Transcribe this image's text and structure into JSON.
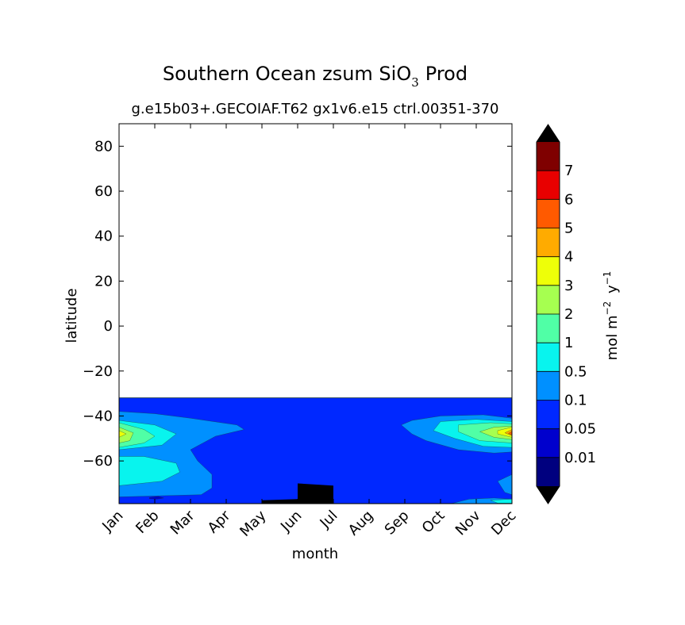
{
  "chart_data": {
    "type": "heatmap",
    "title": "Southern Ocean zsum SiO",
    "title_sub": "3",
    "title_suffix": "Prod",
    "subtitle": "g.e15b03+.GECOIAF.T62 gx1v6.e15 ctrl.00351-370",
    "xlabel": "month",
    "ylabel": "latitude",
    "x": [
      "Jan",
      "Feb",
      "Mar",
      "Apr",
      "May",
      "Jun",
      "Jul",
      "Aug",
      "Sep",
      "Oct",
      "Nov",
      "Dec"
    ],
    "xlim": [
      0,
      11
    ],
    "ylim": [
      -79,
      90
    ],
    "yticks": [
      -60,
      -40,
      -20,
      0,
      20,
      40,
      60,
      80
    ],
    "ytick_labels": [
      "−60",
      "−40",
      "−20",
      "0",
      "20",
      "40",
      "60",
      "80"
    ],
    "data_lat_top": -32,
    "grid": false,
    "colorbar": {
      "label_prefix": "mol m",
      "label_sup1": "−2",
      "label_mid": " y",
      "label_sup2": "−1",
      "levels": [
        "0.01",
        "0.05",
        "0.1",
        "0.5",
        "1",
        "2",
        "3",
        "4",
        "5",
        "6",
        "7"
      ],
      "colors": [
        "#00007f",
        "#0000cd",
        "#0028ff",
        "#0090ff",
        "#08f4ee",
        "#50ffa6",
        "#a6ff50",
        "#eeff08",
        "#ffab00",
        "#ff5a00",
        "#e80000",
        "#7f0000"
      ],
      "under_color": "#000000",
      "over_color": "#000000"
    },
    "contours": [
      {
        "level": 0,
        "points": [
          [
            0,
            -73
          ],
          [
            1,
            -70
          ],
          [
            2,
            -70
          ],
          [
            3,
            -72
          ],
          [
            4,
            -71
          ],
          [
            5,
            -66
          ],
          [
            6,
            -63
          ],
          [
            7,
            -65
          ],
          [
            8,
            -68
          ],
          [
            9,
            -72
          ],
          [
            10,
            -73
          ],
          [
            11,
            -72
          ],
          [
            11,
            -79
          ],
          [
            0,
            -79
          ]
        ]
      },
      {
        "level": 1,
        "points": [
          [
            0,
            -77
          ],
          [
            2.0,
            -77
          ],
          [
            2.4,
            -79
          ],
          [
            0,
            -79
          ]
        ]
      },
      {
        "level": 1,
        "points": [
          [
            2.3,
            -79
          ],
          [
            2.6,
            -76
          ],
          [
            3.5,
            -75
          ],
          [
            4.0,
            -72
          ],
          [
            4.4,
            -66
          ],
          [
            5,
            -61
          ],
          [
            6,
            -58
          ],
          [
            7,
            -60
          ],
          [
            8,
            -66
          ],
          [
            9,
            -71
          ],
          [
            9.4,
            -74
          ],
          [
            9.6,
            -79
          ]
        ]
      },
      {
        "level": 0,
        "points": [
          [
            2.5,
            -79
          ],
          [
            3,
            -77
          ],
          [
            3.5,
            -77
          ],
          [
            4.0,
            -76
          ],
          [
            4.4,
            -71
          ],
          [
            5,
            -66
          ],
          [
            6,
            -63
          ],
          [
            7,
            -65
          ],
          [
            8,
            -69
          ],
          [
            9,
            -74
          ],
          [
            9.4,
            -79
          ]
        ]
      },
      {
        "level": 2,
        "points": [
          [
            0,
            -31.9
          ],
          [
            11,
            -31.9
          ],
          [
            11,
            -79
          ],
          [
            0,
            -79
          ]
        ]
      },
      {
        "level": 3,
        "points": [
          [
            0,
            -38
          ],
          [
            1,
            -39
          ],
          [
            2,
            -41
          ],
          [
            3.3,
            -44
          ],
          [
            3.5,
            -46
          ],
          [
            2.7,
            -49
          ],
          [
            2.0,
            -55
          ],
          [
            2.2,
            -60
          ],
          [
            2.6,
            -66
          ],
          [
            2.6,
            -72
          ],
          [
            2.3,
            -75
          ],
          [
            0,
            -76
          ]
        ]
      },
      {
        "level": 3,
        "points": [
          [
            11,
            -41
          ],
          [
            10.2,
            -39.5
          ],
          [
            9.0,
            -40
          ],
          [
            8.2,
            -42
          ],
          [
            7.9,
            -44
          ],
          [
            8.2,
            -48
          ],
          [
            8.6,
            -51
          ],
          [
            9.5,
            -55
          ],
          [
            10.5,
            -56.5
          ],
          [
            11,
            -56
          ]
        ]
      },
      {
        "level": 3,
        "points": [
          [
            11,
            -66
          ],
          [
            10.6,
            -69
          ],
          [
            10.8,
            -74
          ],
          [
            11,
            -75
          ]
        ]
      },
      {
        "level": 3,
        "points": [
          [
            9.3,
            -79
          ],
          [
            9.8,
            -77
          ],
          [
            10.5,
            -76.5
          ],
          [
            11,
            -77
          ],
          [
            11,
            -79
          ]
        ]
      },
      {
        "level": 4,
        "points": [
          [
            0,
            -42
          ],
          [
            1,
            -44
          ],
          [
            1.6,
            -48
          ],
          [
            1.2,
            -53
          ],
          [
            0,
            -55
          ]
        ]
      },
      {
        "level": 4,
        "points": [
          [
            0,
            -58
          ],
          [
            0.7,
            -58
          ],
          [
            1.6,
            -61
          ],
          [
            1.7,
            -65
          ],
          [
            1.2,
            -69
          ],
          [
            0,
            -71
          ]
        ]
      },
      {
        "level": 4,
        "points": [
          [
            11,
            -42.5
          ],
          [
            10.0,
            -41.5
          ],
          [
            9.0,
            -42.5
          ],
          [
            8.8,
            -46.5
          ],
          [
            9.4,
            -50
          ],
          [
            10.2,
            -53.5
          ],
          [
            11,
            -54
          ]
        ]
      },
      {
        "level": 4,
        "points": [
          [
            11,
            -77
          ],
          [
            10.4,
            -77.5
          ],
          [
            10.6,
            -78.8
          ],
          [
            11,
            -78.8
          ]
        ]
      },
      {
        "level": 5,
        "points": [
          [
            0,
            -43
          ],
          [
            0.7,
            -46
          ],
          [
            1.0,
            -49
          ],
          [
            0.7,
            -52
          ],
          [
            0,
            -54
          ]
        ]
      },
      {
        "level": 5,
        "points": [
          [
            11,
            -43.5
          ],
          [
            10.4,
            -43
          ],
          [
            9.5,
            -44
          ],
          [
            9.5,
            -47
          ],
          [
            10.1,
            -51
          ],
          [
            11,
            -52
          ]
        ]
      },
      {
        "level": 6,
        "points": [
          [
            0,
            -45
          ],
          [
            0.4,
            -47.5
          ],
          [
            0.3,
            -51
          ],
          [
            0,
            -52
          ]
        ]
      },
      {
        "level": 6,
        "points": [
          [
            11,
            -44.5
          ],
          [
            10.5,
            -45
          ],
          [
            10.1,
            -47
          ],
          [
            10.5,
            -49.5
          ],
          [
            11,
            -50.5
          ]
        ]
      },
      {
        "level": 7,
        "points": [
          [
            0,
            -46.5
          ],
          [
            0.2,
            -48
          ],
          [
            0,
            -49.5
          ]
        ]
      },
      {
        "level": 7,
        "points": [
          [
            11,
            -45
          ],
          [
            10.6,
            -46.5
          ],
          [
            10.6,
            -48
          ],
          [
            11,
            -49.5
          ]
        ]
      },
      {
        "level": 8,
        "points": [
          [
            11,
            -46
          ],
          [
            10.8,
            -47.5
          ],
          [
            11,
            -48.8
          ]
        ]
      },
      {
        "level": 9,
        "points": [
          [
            11,
            -46.8
          ],
          [
            10.9,
            -47.8
          ],
          [
            11,
            -48.4
          ]
        ]
      },
      {
        "level": -1,
        "points": [
          [
            4.0,
            -79
          ],
          [
            4.0,
            -77.5
          ],
          [
            5.0,
            -77
          ],
          [
            5.0,
            -70
          ],
          [
            6.0,
            -71
          ],
          [
            6.0,
            -79
          ]
        ]
      },
      {
        "level": 1,
        "points": [
          [
            0.85,
            -76.3
          ],
          [
            1.1,
            -75.8
          ],
          [
            1.25,
            -76.5
          ],
          [
            1.05,
            -77
          ],
          [
            0.85,
            -76.8
          ]
        ]
      }
    ]
  }
}
